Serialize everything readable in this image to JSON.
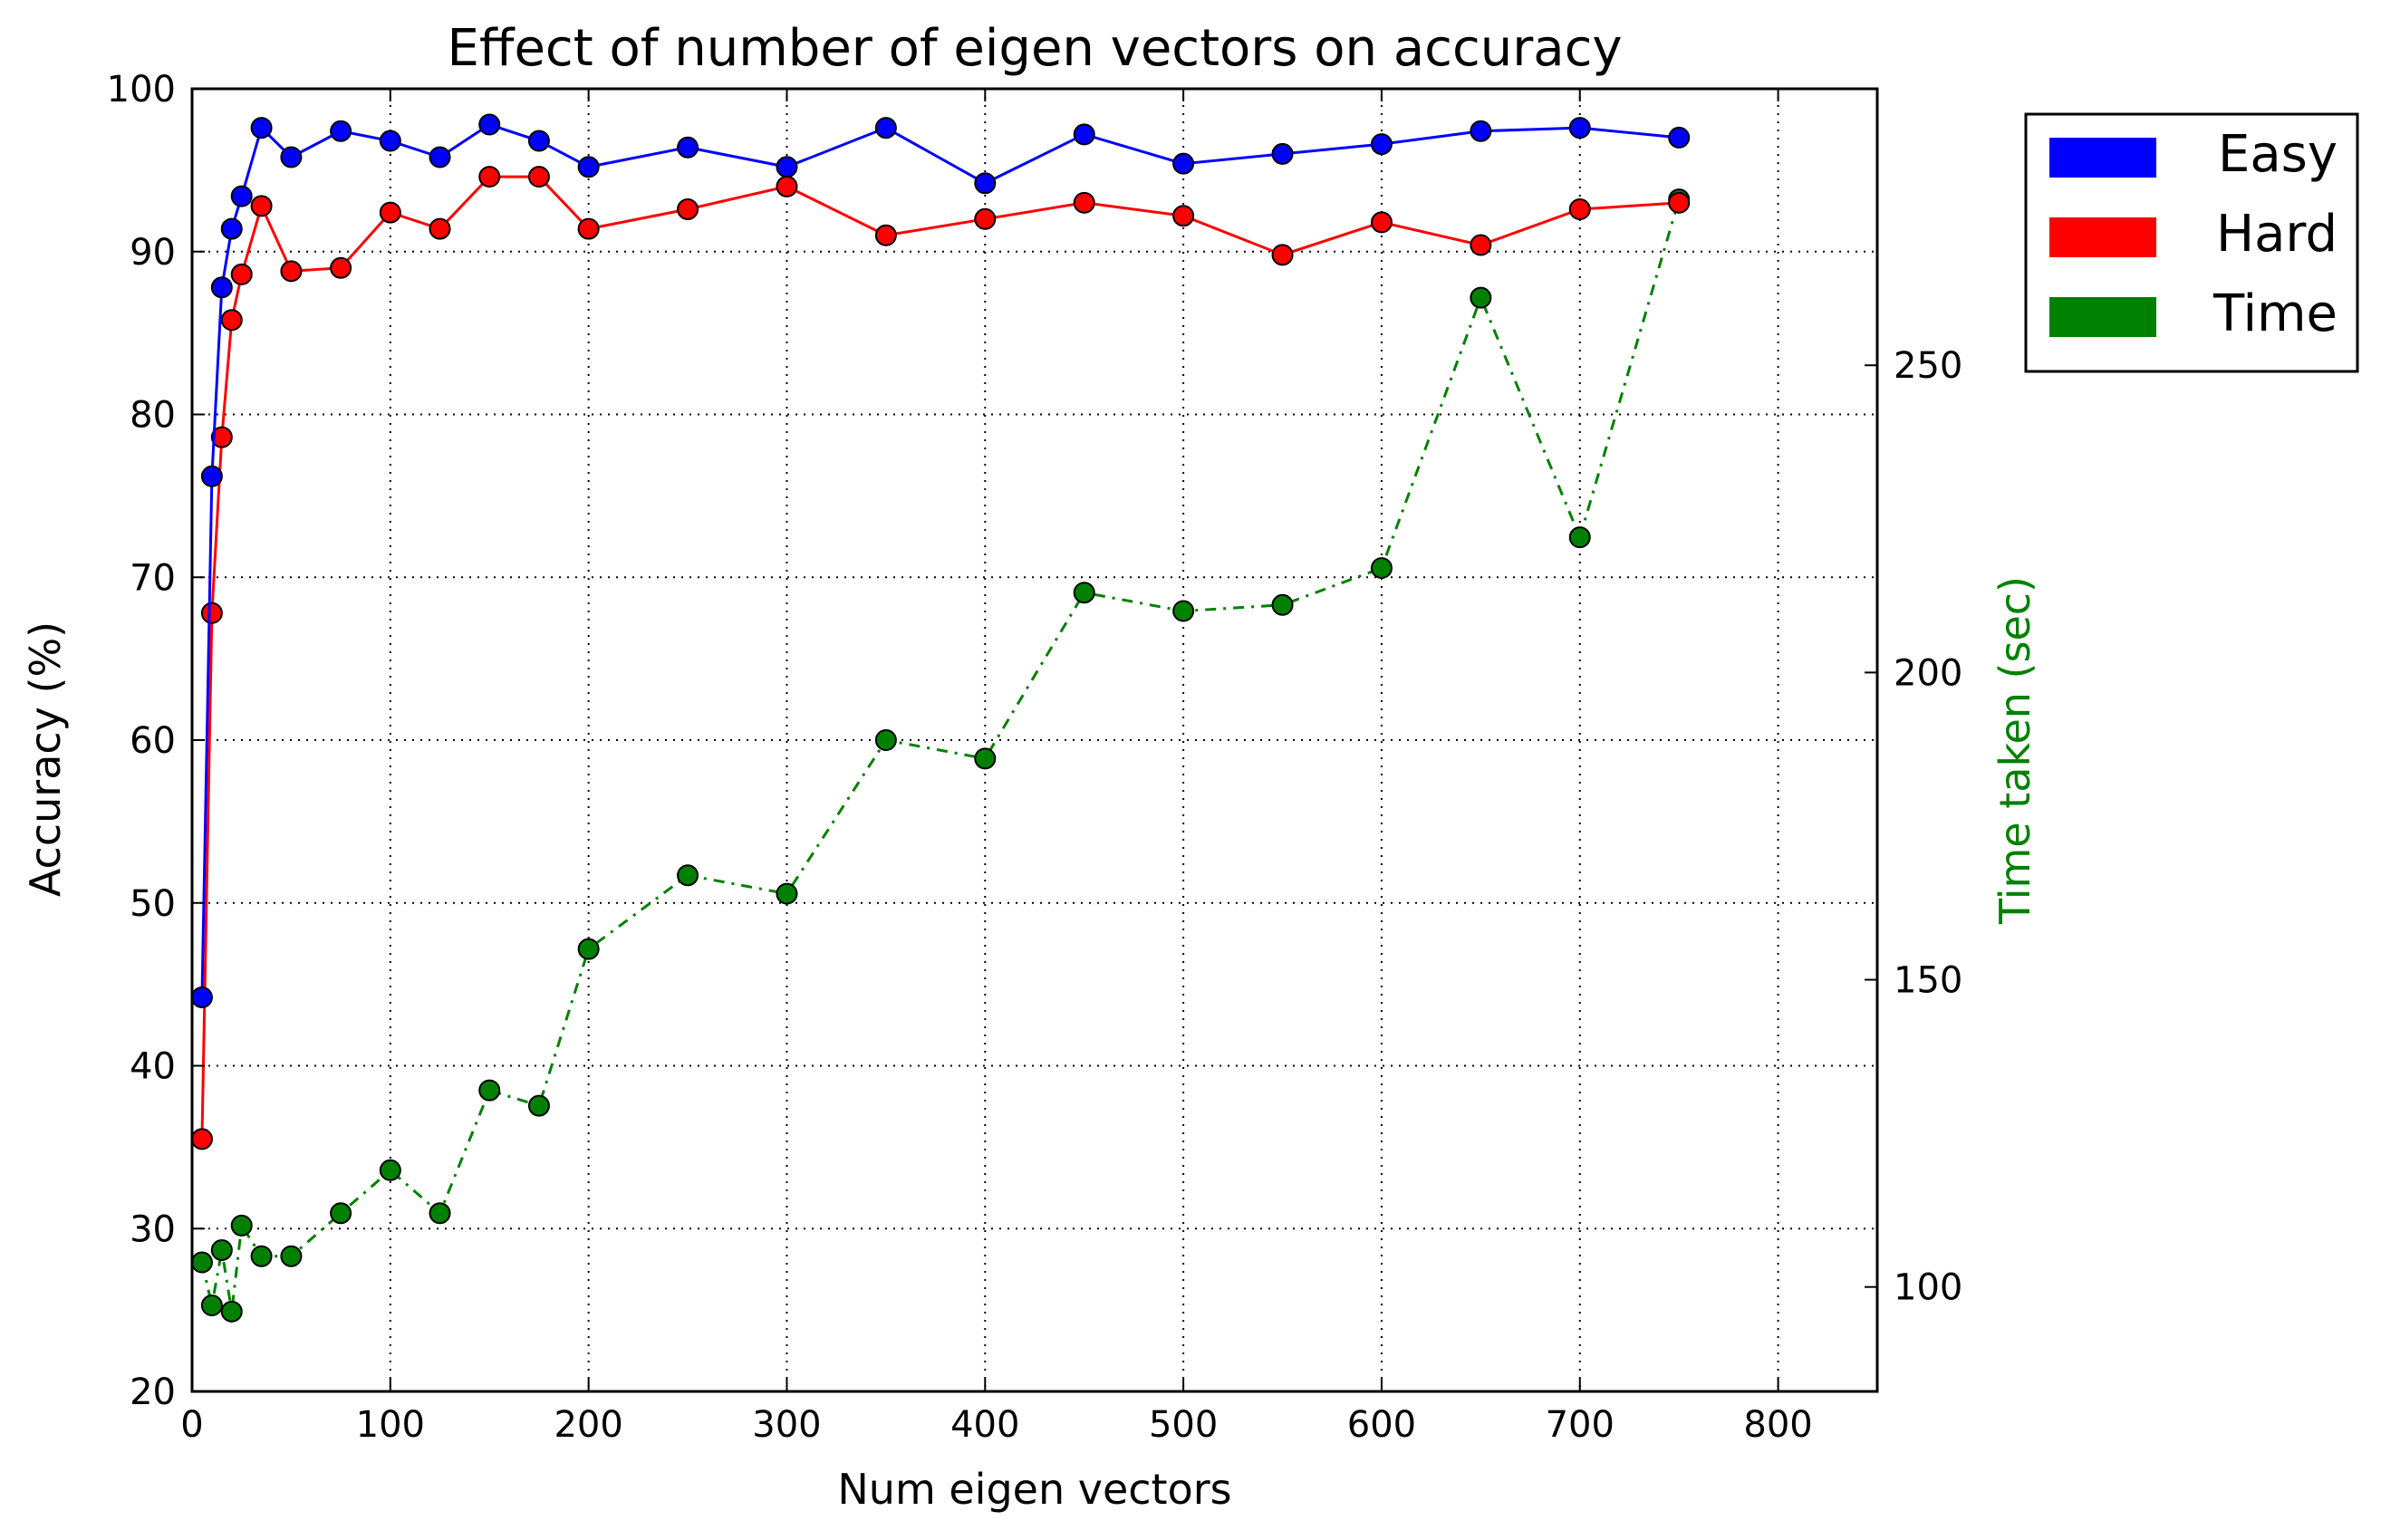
{
  "chart_data": {
    "type": "line",
    "title": "Effect of number of eigen vectors on accuracy",
    "xlabel": "Num eigen vectors",
    "ylabel": "Accuracy (%)",
    "y2label": "Time taken (sec)",
    "xlim": [
      0,
      850
    ],
    "ylim": [
      20,
      100
    ],
    "y2lim": [
      83,
      295
    ],
    "xticks": [
      0,
      100,
      200,
      300,
      400,
      500,
      600,
      700,
      800
    ],
    "yticks": [
      20,
      30,
      40,
      50,
      60,
      70,
      80,
      90,
      100
    ],
    "y2ticks": [
      100,
      150,
      200,
      250
    ],
    "grid": true,
    "legend_position": "outside-right-top",
    "x": [
      5,
      10,
      15,
      20,
      25,
      35,
      50,
      75,
      100,
      125,
      150,
      175,
      200,
      250,
      300,
      350,
      400,
      450,
      500,
      550,
      600,
      650,
      700,
      750
    ],
    "series": [
      {
        "name": "Easy",
        "axis": "left",
        "color": "#0000ff",
        "linestyle": "solid",
        "values": [
          44.2,
          76.2,
          87.8,
          91.4,
          93.4,
          97.6,
          95.8,
          97.4,
          96.8,
          95.8,
          97.8,
          96.8,
          95.2,
          96.4,
          95.2,
          97.6,
          94.2,
          97.2,
          95.4,
          96.0,
          96.6,
          97.4,
          97.6,
          97.0
        ]
      },
      {
        "name": "Hard",
        "axis": "left",
        "color": "#ff0000",
        "linestyle": "solid",
        "values": [
          35.5,
          67.8,
          78.6,
          85.8,
          88.6,
          92.8,
          88.8,
          89.0,
          92.4,
          91.4,
          94.6,
          94.6,
          91.4,
          92.6,
          94.0,
          91.0,
          92.0,
          93.0,
          92.2,
          89.8,
          91.8,
          90.4,
          92.6,
          93.0
        ]
      },
      {
        "name": "Time",
        "axis": "right",
        "color": "#008000",
        "linestyle": "dashdot",
        "values": [
          104,
          97,
          106,
          96,
          110,
          105,
          105,
          112,
          119,
          112,
          132,
          129.5,
          155,
          167,
          164,
          189,
          186,
          213,
          210,
          211,
          217,
          261,
          222,
          277
        ]
      }
    ]
  },
  "axis_color": "#000000",
  "grid_color": "#000000",
  "marker_edge": "#000000",
  "y2label_color": "#008000"
}
